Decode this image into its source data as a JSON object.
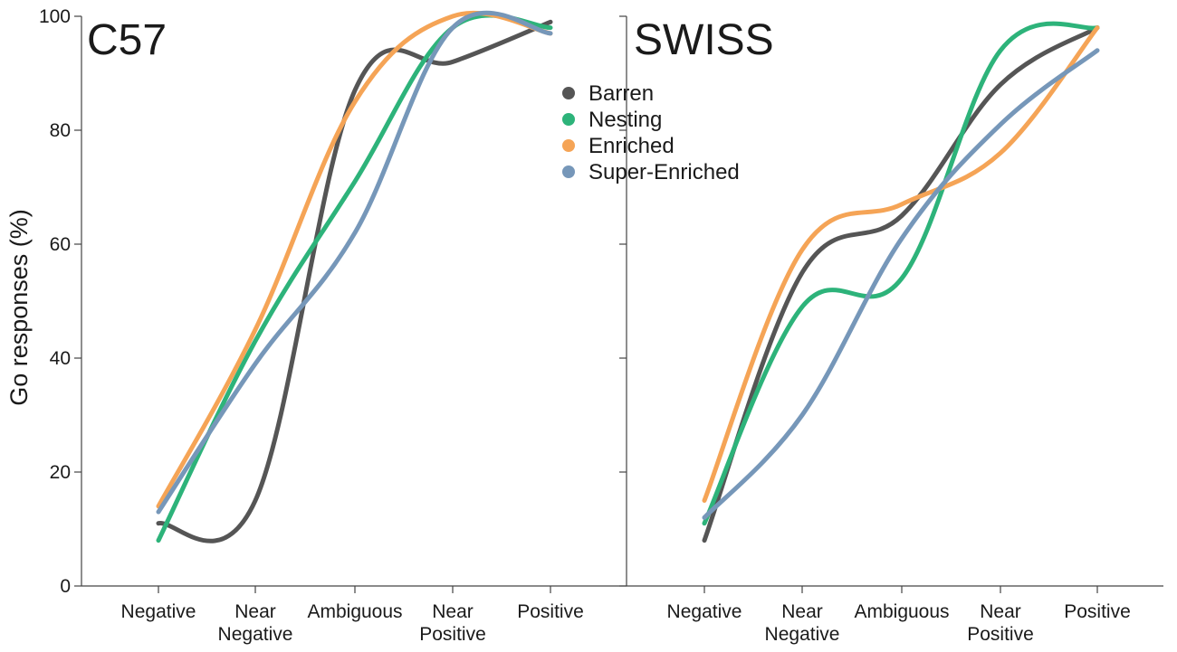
{
  "figure": {
    "ylabel": "Go responses (%)"
  },
  "legend": {
    "items": [
      {
        "name": "Barren",
        "color": "#555555"
      },
      {
        "name": "Nesting",
        "color": "#2db37a"
      },
      {
        "name": "Enriched",
        "color": "#f5a456"
      },
      {
        "name": "Super-Enriched",
        "color": "#7697b9"
      }
    ]
  },
  "chart_data": [
    {
      "type": "line",
      "title": "C57",
      "xlabel": "",
      "ylabel": "Go responses (%)",
      "categories": [
        [
          "Negative"
        ],
        [
          "Near",
          "Negative"
        ],
        [
          "Ambiguous"
        ],
        [
          "Near",
          "Positive"
        ],
        [
          "Positive"
        ]
      ],
      "ylim": [
        0,
        100
      ],
      "yticks": [
        0,
        20,
        40,
        60,
        80,
        100
      ],
      "series": [
        {
          "name": "Barren",
          "color": "#555555",
          "values": [
            11,
            15,
            87,
            92,
            99
          ]
        },
        {
          "name": "Nesting",
          "color": "#2db37a",
          "values": [
            8,
            43,
            71,
            98,
            98
          ]
        },
        {
          "name": "Enriched",
          "color": "#f5a456",
          "values": [
            14,
            45,
            85,
            100,
            97
          ]
        },
        {
          "name": "Super-Enriched",
          "color": "#7697b9",
          "values": [
            13,
            39,
            62,
            98,
            97
          ]
        }
      ]
    },
    {
      "type": "line",
      "title": "SWISS",
      "xlabel": "",
      "ylabel": "",
      "categories": [
        [
          "Negative"
        ],
        [
          "Near",
          "Negative"
        ],
        [
          "Ambiguous"
        ],
        [
          "Near",
          "Positive"
        ],
        [
          "Positive"
        ]
      ],
      "ylim": [
        0,
        100
      ],
      "yticks": [
        0,
        20,
        40,
        60,
        80,
        100
      ],
      "series": [
        {
          "name": "Barren",
          "color": "#555555",
          "values": [
            8,
            55,
            65,
            88,
            98
          ]
        },
        {
          "name": "Nesting",
          "color": "#2db37a",
          "values": [
            11,
            49,
            54,
            94,
            98
          ]
        },
        {
          "name": "Enriched",
          "color": "#f5a456",
          "values": [
            15,
            59,
            67,
            76,
            98
          ]
        },
        {
          "name": "Super-Enriched",
          "color": "#7697b9",
          "values": [
            12,
            30,
            61,
            81,
            94
          ]
        }
      ]
    }
  ]
}
